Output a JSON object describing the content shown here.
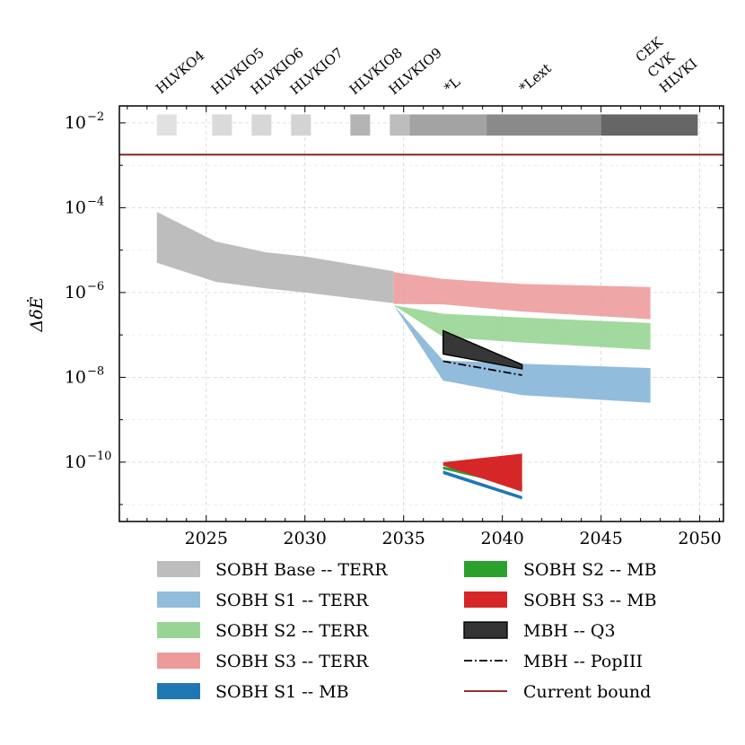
{
  "chart_data": {
    "type": "area",
    "x_axis": {
      "min": 2020.6,
      "max": 2051.2,
      "ticks": [
        2025,
        2030,
        2035,
        2040,
        2045,
        2050
      ],
      "tick_labels": [
        "2025",
        "2030",
        "2035",
        "2040",
        "2045",
        "2050"
      ],
      "label": ""
    },
    "y_axis": {
      "scale": "log",
      "min_exp": -11.4,
      "max_exp": -1.6,
      "ticks": [
        -2,
        -4,
        -6,
        -8,
        -10
      ],
      "tick_labels_base": "10",
      "tick_label_exps": [
        "−2",
        "−4",
        "−6",
        "−8",
        "−10"
      ],
      "label": "ΔδĖ"
    },
    "grid": true,
    "colors": {
      "base": "#bdbdbd",
      "s1_terr": "#92bcdc",
      "s2_terr": "#98d594",
      "s3_terr": "#ed9a9a",
      "s1_mb": "#1f77b4",
      "s2_mb": "#2ca02c",
      "s3_mb": "#d62728",
      "q3": "#333333",
      "current_bound": "#7f1414",
      "popiii": "#000000"
    },
    "current_bound": {
      "y_exp": -2.75
    },
    "bands": [
      {
        "key": "base",
        "name": "SOBH Base -- TERR",
        "x": [
          2022.5,
          2025.5,
          2028,
          2030,
          2034.5
        ],
        "upper_exp": [
          -4.1,
          -4.8,
          -5.05,
          -5.15,
          -5.5
        ],
        "lower_exp": [
          -5.3,
          -5.75,
          -5.9,
          -6.0,
          -6.25
        ]
      },
      {
        "key": "s1_terr",
        "name": "SOBH S1 -- TERR",
        "x": [
          2034.5,
          2037,
          2041,
          2047.5
        ],
        "upper_exp": [
          -6.3,
          -7.6,
          -7.68,
          -7.78
        ],
        "lower_exp": [
          -6.3,
          -8.08,
          -8.42,
          -8.6
        ]
      },
      {
        "key": "s2_terr",
        "name": "SOBH S2 -- TERR",
        "x": [
          2034.5,
          2037,
          2041,
          2047.5
        ],
        "upper_exp": [
          -6.3,
          -6.5,
          -6.59,
          -6.72
        ],
        "lower_exp": [
          -6.3,
          -7.05,
          -7.18,
          -7.35
        ]
      },
      {
        "key": "s3_terr",
        "name": "SOBH S3 -- TERR",
        "x": [
          2034.5,
          2037,
          2041,
          2047.5
        ],
        "upper_exp": [
          -5.52,
          -5.68,
          -5.8,
          -5.87
        ],
        "lower_exp": [
          -6.27,
          -6.28,
          -6.45,
          -6.63
        ]
      },
      {
        "key": "q3",
        "name": "MBH -- Q3",
        "x": [
          2037,
          2041
        ],
        "upper_exp": [
          -6.9,
          -7.7
        ],
        "lower_exp": [
          -7.45,
          -7.8
        ]
      },
      {
        "key": "s1_mb",
        "name": "SOBH S1 -- MB",
        "x": [
          2037,
          2041
        ],
        "upper_exp": [
          -10.2,
          -10.8
        ],
        "lower_exp": [
          -10.28,
          -10.88
        ]
      },
      {
        "key": "s2_mb",
        "name": "SOBH S2 -- MB",
        "x": [
          2037,
          2041
        ],
        "upper_exp": [
          -10.1,
          -10.5
        ],
        "lower_exp": [
          -10.17,
          -10.6
        ]
      },
      {
        "key": "s3_mb",
        "name": "SOBH S3 -- MB",
        "x": [
          2037,
          2041
        ],
        "upper_exp": [
          -10.0,
          -9.8
        ],
        "lower_exp": [
          -10.08,
          -10.7
        ]
      }
    ],
    "popiii_line": {
      "x": [
        2037,
        2041
      ],
      "y_exp": [
        -7.62,
        -7.95
      ]
    },
    "observatory_bars": [
      {
        "x0": 2022.5,
        "x1": 2023.5,
        "shade": "#e1e1e1"
      },
      {
        "x0": 2025.3,
        "x1": 2026.3,
        "shade": "#dadada"
      },
      {
        "x0": 2027.3,
        "x1": 2028.3,
        "shade": "#d7d7d7"
      },
      {
        "x0": 2029.3,
        "x1": 2030.3,
        "shade": "#d3d3d3"
      },
      {
        "x0": 2032.3,
        "x1": 2033.3,
        "shade": "#b4b4b4"
      },
      {
        "x0": 2034.3,
        "x1": 2035.3,
        "shade": "#bdbdbd"
      },
      {
        "x0": 2035.3,
        "x1": 2039.2,
        "shade": "#a3a3a3"
      },
      {
        "x0": 2039.2,
        "x1": 2045.0,
        "shade": "#8a8a8a"
      },
      {
        "x0": 2045.0,
        "x1": 2049.9,
        "shade": "#666666"
      }
    ],
    "observatory_labels": [
      {
        "text": "HLVKO4",
        "x": 2022.7
      },
      {
        "text": "HLVKIO5",
        "x": 2025.5
      },
      {
        "text": "HLVKIO6",
        "x": 2027.5
      },
      {
        "text": "HLVKIO7",
        "x": 2029.5
      },
      {
        "text": "HLVKIO8",
        "x": 2032.5
      },
      {
        "text": "HLVKIO9",
        "x": 2034.5
      },
      {
        "text": "*L",
        "x": 2037.3
      },
      {
        "text": "*Lext",
        "x": 2041.1
      },
      {
        "text": "CEK",
        "x": 2047.0
      },
      {
        "text": "CVK",
        "x": 2047.6
      },
      {
        "text": "HLVKI",
        "x": 2048.2
      }
    ],
    "legend": {
      "placement": "below",
      "left_column": [
        {
          "type": "patch",
          "color_key": "base",
          "label": "SOBH Base -- TERR"
        },
        {
          "type": "patch",
          "color_key": "s1_terr",
          "label": "SOBH S1 -- TERR"
        },
        {
          "type": "patch",
          "color_key": "s2_terr",
          "label": "SOBH S2 -- TERR"
        },
        {
          "type": "patch",
          "color_key": "s3_terr",
          "label": "SOBH S3 -- TERR"
        },
        {
          "type": "patch",
          "color_key": "s1_mb",
          "label": "SOBH S1 -- MB"
        }
      ],
      "right_column": [
        {
          "type": "patch",
          "color_key": "s2_mb",
          "label": "SOBH S2 -- MB"
        },
        {
          "type": "patch",
          "color_key": "s3_mb",
          "label": "SOBH S3 -- MB"
        },
        {
          "type": "patch_edge",
          "color_key": "q3",
          "label": "MBH -- Q3"
        },
        {
          "type": "dashdot",
          "color_key": "popiii",
          "label": "MBH -- PopIII"
        },
        {
          "type": "line",
          "color_key": "current_bound",
          "label": "Current bound"
        }
      ]
    }
  }
}
